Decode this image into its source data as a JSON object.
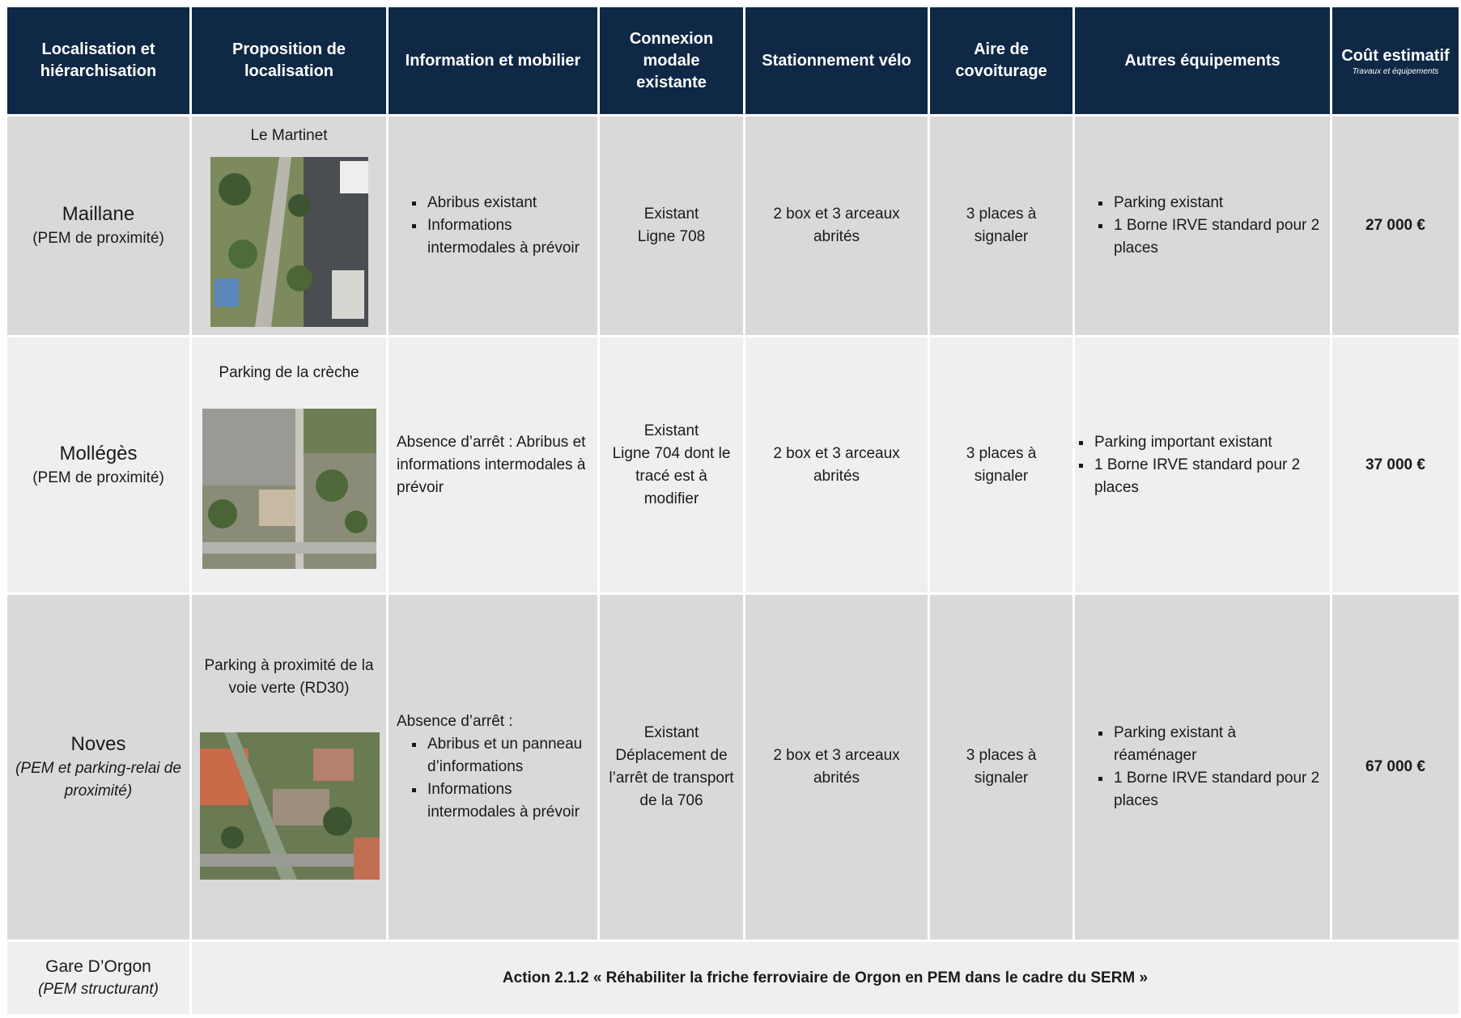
{
  "table": {
    "columns": [
      "Localisation et hiérarchisation",
      "Proposition de localisation",
      "Information et mobilier",
      "Connexion modale existante",
      "Stationnement vélo",
      "Aire de covoiturage",
      "Autres équipements",
      "Coût estimatif"
    ],
    "cost_note": "Travaux et équipements",
    "rows": [
      {
        "location": "Maillane",
        "level": "(PEM de proximité)",
        "site": "Le Martinet",
        "info": {
          "items": [
            "Abribus existant",
            "Informations intermodales à prévoir"
          ]
        },
        "connexion": [
          "Existant",
          "Ligne 708"
        ],
        "velo": "2 box et 3 arceaux abrités",
        "covoiturage": "3 places à signaler",
        "autres": [
          "Parking existant",
          "1 Borne IRVE standard pour 2 places"
        ],
        "cost": "27 000 €"
      },
      {
        "location": "Mollégès",
        "level": "(PEM de proximité)",
        "site": "Parking de la crèche",
        "info": {
          "intro": "Absence d’arrêt : Abribus et informations intermodales à prévoir"
        },
        "connexion": [
          "Existant",
          "Ligne 704 dont le tracé est à modifier"
        ],
        "velo": "2 box et 3 arceaux abrités",
        "covoiturage": "3 places à signaler",
        "autres": [
          "Parking important existant",
          "1 Borne IRVE standard pour 2 places"
        ],
        "cost": "37 000 €"
      },
      {
        "location": "Noves",
        "level": "(PEM et parking-relai de proximité)",
        "site": "Parking à proximité de la voie verte (RD30)",
        "info": {
          "intro": "Absence d’arrêt :",
          "items": [
            "Abribus et un panneau d’informations",
            "Informations intermodales à prévoir"
          ]
        },
        "connexion": [
          "Existant",
          "Déplacement de l’arrêt de transport de la 706"
        ],
        "velo": "2 box et 3 arceaux abrités",
        "covoiturage": "3 places à signaler",
        "autres": [
          "Parking existant à réaménager",
          "1 Borne IRVE standard pour 2 places"
        ],
        "cost": "67 000 €"
      },
      {
        "location": "Gare D’Orgon",
        "level": "(PEM structurant)",
        "action": "Action 2.1.2 « Réhabiliter la friche ferroviaire de Orgon en PEM dans le cadre du SERM »"
      }
    ]
  }
}
